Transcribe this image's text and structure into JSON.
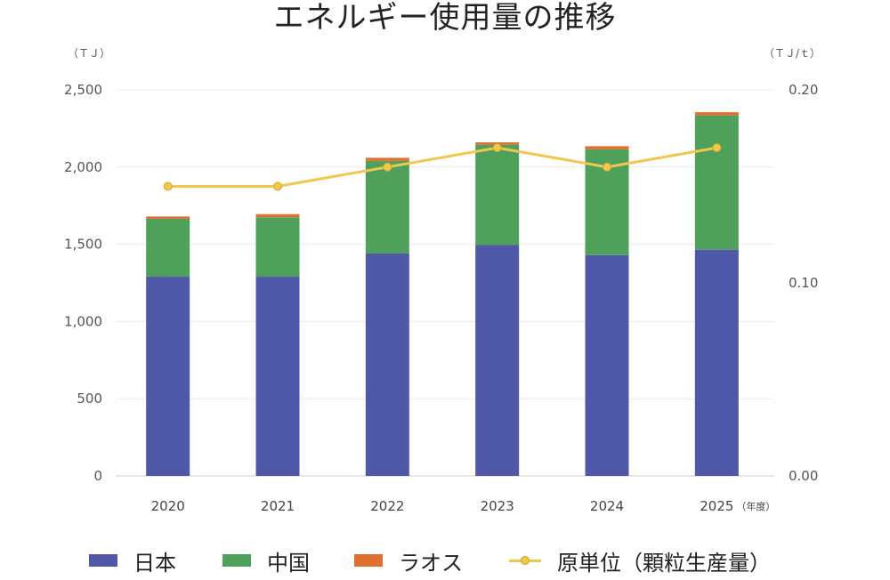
{
  "chart_data": {
    "type": "bar",
    "stacked": true,
    "title": "エネルギー使用量の推移",
    "categories": [
      "2020",
      "2021",
      "2022",
      "2023",
      "2024",
      "2025"
    ],
    "category_suffix": "（年度）",
    "y_left": {
      "unit": "（ＴＪ）",
      "ylim": [
        0,
        2500
      ],
      "ticks": [
        "0",
        "500",
        "1,000",
        "1,500",
        "2,000",
        "2,500"
      ],
      "tick_values": [
        0,
        500,
        1000,
        1500,
        2000,
        2500
      ]
    },
    "y_right": {
      "unit": "（ＴＪ/ｔ）",
      "ylim": [
        0,
        0.2
      ],
      "ticks": [
        "0.00",
        "0.10",
        "0.20"
      ],
      "tick_values": [
        0,
        0.1,
        0.2
      ]
    },
    "series": [
      {
        "name": "日本",
        "type": "bar",
        "color": "#5059a8",
        "values": [
          1290,
          1290,
          1440,
          1495,
          1430,
          1465
        ]
      },
      {
        "name": "中国",
        "type": "bar",
        "color": "#4ea05a",
        "values": [
          375,
          385,
          600,
          650,
          685,
          870
        ]
      },
      {
        "name": "ラオス",
        "type": "bar",
        "color": "#e07030",
        "values": [
          15,
          20,
          20,
          15,
          20,
          20
        ]
      },
      {
        "name": "原単位（顆粒生産量）",
        "type": "line",
        "axis": "right",
        "color": "#f0c850",
        "values": [
          0.15,
          0.15,
          0.16,
          0.17,
          0.16,
          0.17
        ]
      }
    ],
    "grid": true,
    "legend_position": "bottom"
  }
}
